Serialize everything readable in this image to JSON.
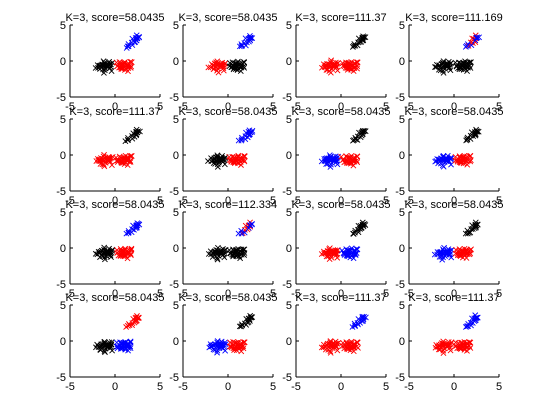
{
  "figure": {
    "background": "#ffffff"
  },
  "colors": {
    "black": "#000000",
    "red": "#ff0000",
    "blue": "#0000ff"
  },
  "chart_data": [
    {
      "type": "scatter",
      "title": "K=3, score=58.0435",
      "xlim": [
        -5,
        5
      ],
      "ylim": [
        -5,
        5
      ],
      "xticks": [
        "-5",
        "0",
        "5"
      ],
      "yticks": [
        "5",
        "0",
        "-5"
      ],
      "clusters": {
        "left": "black",
        "middle": "red",
        "upper": "blue"
      }
    },
    {
      "type": "scatter",
      "title": "K=3, score=58.0435",
      "xlim": [
        -5,
        5
      ],
      "ylim": [
        -5,
        5
      ],
      "xticks": [
        "-5",
        "0",
        "5"
      ],
      "yticks": [
        "5",
        "0",
        "-5"
      ],
      "clusters": {
        "left": "red",
        "middle": "black",
        "upper": "blue"
      }
    },
    {
      "type": "scatter",
      "title": "K=3, score=111.37",
      "xlim": [
        -5,
        5
      ],
      "ylim": [
        -5,
        5
      ],
      "xticks": [
        "-5",
        "0",
        "5"
      ],
      "yticks": [
        "5",
        "0",
        "-5"
      ],
      "clusters": {
        "left": "red",
        "middle": "red",
        "upper": "black"
      }
    },
    {
      "type": "scatter",
      "title": "K=3, score=111.169",
      "xlim": [
        -5,
        5
      ],
      "ylim": [
        -5,
        5
      ],
      "xticks": [
        "-5",
        "0",
        "5"
      ],
      "yticks": [
        "5",
        "0",
        "-5"
      ],
      "clusters": {
        "left": "black",
        "middle": "black",
        "upper": "red-blue"
      }
    },
    {
      "type": "scatter",
      "title": "K=3, score=111.37",
      "xlim": [
        -5,
        5
      ],
      "ylim": [
        -5,
        5
      ],
      "xticks": [
        "-5",
        "0",
        "5"
      ],
      "yticks": [
        "5",
        "0",
        "-5"
      ],
      "clusters": {
        "left": "red",
        "middle": "red",
        "upper": "black"
      }
    },
    {
      "type": "scatter",
      "title": "K=3, score=58.0435",
      "xlim": [
        -5,
        5
      ],
      "ylim": [
        -5,
        5
      ],
      "xticks": [
        "-5",
        "0",
        "5"
      ],
      "yticks": [
        "5",
        "0",
        "-5"
      ],
      "clusters": {
        "left": "black",
        "middle": "red",
        "upper": "blue"
      }
    },
    {
      "type": "scatter",
      "title": "K=3, score=58.0435",
      "xlim": [
        -5,
        5
      ],
      "ylim": [
        -5,
        5
      ],
      "xticks": [
        "-5",
        "0",
        "5"
      ],
      "yticks": [
        "5",
        "0",
        "-5"
      ],
      "clusters": {
        "left": "blue",
        "middle": "red",
        "upper": "black"
      }
    },
    {
      "type": "scatter",
      "title": "K=3, score=58.0435",
      "xlim": [
        -5,
        5
      ],
      "ylim": [
        -5,
        5
      ],
      "xticks": [
        "-5",
        "0",
        "5"
      ],
      "yticks": [
        "5",
        "0",
        "-5"
      ],
      "clusters": {
        "left": "blue",
        "middle": "red",
        "upper": "black"
      }
    },
    {
      "type": "scatter",
      "title": "K=3, score=58.0435",
      "xlim": [
        -5,
        5
      ],
      "ylim": [
        -5,
        5
      ],
      "xticks": [
        "-5",
        "0",
        "5"
      ],
      "yticks": [
        "5",
        "0",
        "-5"
      ],
      "clusters": {
        "left": "black",
        "middle": "red",
        "upper": "blue"
      }
    },
    {
      "type": "scatter",
      "title": "K=3, score=112.334",
      "xlim": [
        -5,
        5
      ],
      "ylim": [
        -5,
        5
      ],
      "xticks": [
        "-5",
        "0",
        "5"
      ],
      "yticks": [
        "5",
        "0",
        "-5"
      ],
      "clusters": {
        "left": "black",
        "middle": "black",
        "upper": "red-blue"
      }
    },
    {
      "type": "scatter",
      "title": "K=3, score=58.0435",
      "xlim": [
        -5,
        5
      ],
      "ylim": [
        -5,
        5
      ],
      "xticks": [
        "-5",
        "0",
        "5"
      ],
      "yticks": [
        "5",
        "0",
        "-5"
      ],
      "clusters": {
        "left": "red",
        "middle": "blue",
        "upper": "black"
      }
    },
    {
      "type": "scatter",
      "title": "K=3, score=58.0435",
      "xlim": [
        -5,
        5
      ],
      "ylim": [
        -5,
        5
      ],
      "xticks": [
        "-5",
        "0",
        "5"
      ],
      "yticks": [
        "5",
        "0",
        "-5"
      ],
      "clusters": {
        "left": "blue",
        "middle": "red",
        "upper": "black"
      }
    },
    {
      "type": "scatter",
      "title": "K=3, score=58.0435",
      "xlim": [
        -5,
        5
      ],
      "ylim": [
        -5,
        5
      ],
      "xticks": [
        "-5",
        "0",
        "5"
      ],
      "yticks": [
        "5",
        "0",
        "-5"
      ],
      "clusters": {
        "left": "black",
        "middle": "blue",
        "upper": "red"
      }
    },
    {
      "type": "scatter",
      "title": "K=3, score=58.0435",
      "xlim": [
        -5,
        5
      ],
      "ylim": [
        -5,
        5
      ],
      "xticks": [
        "-5",
        "0",
        "5"
      ],
      "yticks": [
        "5",
        "0",
        "-5"
      ],
      "clusters": {
        "left": "blue",
        "middle": "red",
        "upper": "black"
      }
    },
    {
      "type": "scatter",
      "title": "K=3, score=111.37",
      "xlim": [
        -5,
        5
      ],
      "ylim": [
        -5,
        5
      ],
      "xticks": [
        "-5",
        "0",
        "5"
      ],
      "yticks": [
        "5",
        "0",
        "-5"
      ],
      "clusters": {
        "left": "red",
        "middle": "red",
        "upper": "blue"
      }
    },
    {
      "type": "scatter",
      "title": "K=3, score=111.37",
      "xlim": [
        -5,
        5
      ],
      "ylim": [
        -5,
        5
      ],
      "xticks": [
        "-5",
        "0",
        "5"
      ],
      "yticks": [
        "5",
        "0",
        "-5"
      ],
      "clusters": {
        "left": "red",
        "middle": "red",
        "upper": "blue"
      }
    }
  ]
}
